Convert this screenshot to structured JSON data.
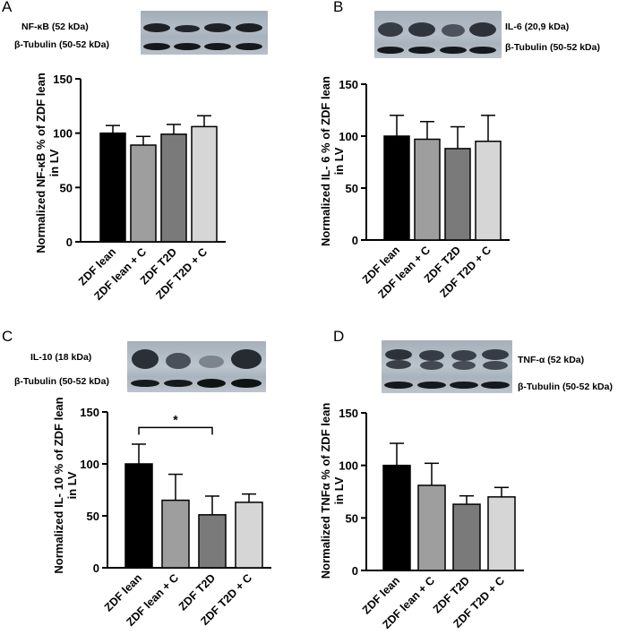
{
  "panels": [
    {
      "letter": "A",
      "blot_labels": [
        "NF-κB (52 kDa)",
        "β-Tubulin (50-52 kDa)"
      ],
      "chart_data": {
        "type": "bar",
        "categories": [
          "ZDF lean",
          "ZDF lean + C",
          "ZDF T2D",
          "ZDF T2D + C"
        ],
        "values": [
          100,
          89,
          99,
          106
        ],
        "errors": [
          7,
          8,
          9,
          10
        ],
        "ylabel": "Normalized NF-κB % of ZDF lean in LV",
        "ylim": [
          0,
          150
        ],
        "yticks": [
          0,
          50,
          100,
          150
        ],
        "colors": [
          "#000000",
          "#9e9e9e",
          "#7a7a7a",
          "#d6d6d6"
        ],
        "significance": []
      }
    },
    {
      "letter": "B",
      "blot_labels": [
        "IL-6 (20,9 kDa)",
        "β-Tubulin (50-52 kDa)"
      ],
      "chart_data": {
        "type": "bar",
        "categories": [
          "ZDF lean",
          "ZDF lean + C",
          "ZDF T2D",
          "ZDF T2D + C"
        ],
        "values": [
          100,
          97,
          88,
          95
        ],
        "errors": [
          20,
          17,
          21,
          25
        ],
        "ylabel": "Normalized IL- 6 % of ZDF lean in LV",
        "ylim": [
          0,
          150
        ],
        "yticks": [
          0,
          50,
          100,
          150
        ],
        "colors": [
          "#000000",
          "#9e9e9e",
          "#7a7a7a",
          "#d6d6d6"
        ],
        "significance": []
      }
    },
    {
      "letter": "C",
      "blot_labels": [
        "IL-10 (18 kDa)",
        "β-Tubulin (50-52 kDa)"
      ],
      "chart_data": {
        "type": "bar",
        "categories": [
          "ZDF lean",
          "ZDF lean + C",
          "ZDF T2D",
          "ZDF T2D + C"
        ],
        "values": [
          100,
          65,
          51,
          63
        ],
        "errors": [
          19,
          25,
          18,
          8
        ],
        "ylabel": "Normalized IL- 10 % of ZDF lean in LV",
        "ylim": [
          0,
          150
        ],
        "yticks": [
          0,
          50,
          100,
          150
        ],
        "colors": [
          "#000000",
          "#9e9e9e",
          "#7a7a7a",
          "#d6d6d6"
        ],
        "significance": [
          {
            "from": 0,
            "to": 2,
            "label": "*",
            "y": 135
          }
        ]
      }
    },
    {
      "letter": "D",
      "blot_labels": [
        "TNF-α (52 kDa)",
        "β-Tubulin (50-52 kDa)"
      ],
      "chart_data": {
        "type": "bar",
        "categories": [
          "ZDF lean",
          "ZDF lean + C",
          "ZDF T2D",
          "ZDF T2D + C"
        ],
        "values": [
          100,
          81,
          63,
          70
        ],
        "errors": [
          21,
          21,
          8,
          9
        ],
        "ylabel": "Normalized TNFα % of ZDF lean in LV",
        "ylim": [
          0,
          150
        ],
        "yticks": [
          0,
          50,
          100,
          150
        ],
        "colors": [
          "#000000",
          "#9e9e9e",
          "#7a7a7a",
          "#d6d6d6"
        ],
        "significance": []
      }
    }
  ]
}
